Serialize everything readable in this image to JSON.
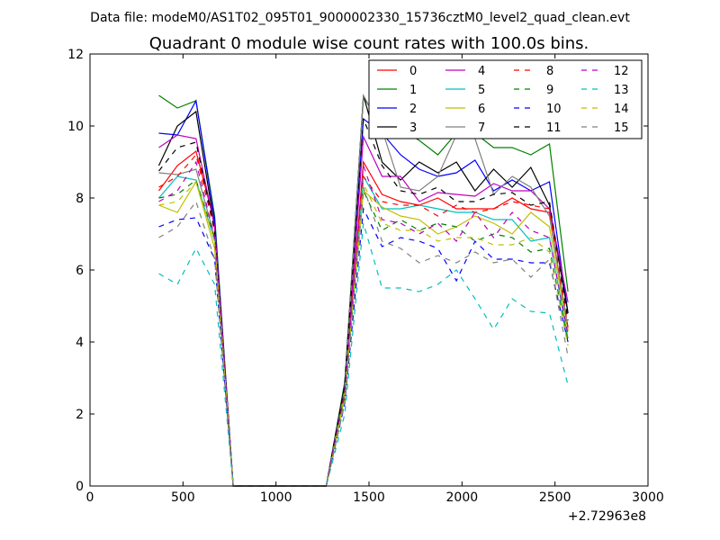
{
  "chart_data": {
    "type": "line",
    "subtitle": "Data file: modeM0/AS1T02_095T01_9000002330_15736cztM0_level2_quad_clean.evt",
    "title": "Quadrant 0 module wise count rates with 100.0s bins.",
    "xlabel": "",
    "ylabel": "",
    "x_offset_label": "+2.72963e8",
    "xlim": [
      0,
      3000
    ],
    "ylim": [
      0,
      12
    ],
    "xticks": [
      0,
      500,
      1000,
      1500,
      2000,
      2500,
      3000
    ],
    "yticks": [
      0,
      2,
      4,
      6,
      8,
      10,
      12
    ],
    "legend_position": "top-right",
    "legend_columns": 4,
    "x": [
      370,
      470,
      570,
      670,
      770,
      870,
      970,
      1070,
      1170,
      1270,
      1370,
      1470,
      1570,
      1670,
      1770,
      1870,
      1970,
      2070,
      2170,
      2270,
      2370,
      2470,
      2570
    ],
    "series": [
      {
        "name": "0",
        "color": "#ff0000",
        "style": "solid",
        "values": [
          8.2,
          8.9,
          9.3,
          7.3,
          0,
          0,
          0,
          0,
          0,
          0,
          2.6,
          9.0,
          8.1,
          7.9,
          7.8,
          8.0,
          7.7,
          7.7,
          7.7,
          8.0,
          7.7,
          7.6,
          4.3
        ]
      },
      {
        "name": "1",
        "color": "#008000",
        "style": "solid",
        "values": [
          10.85,
          10.5,
          10.7,
          7.5,
          0,
          0,
          0,
          0,
          0,
          0,
          2.9,
          10.8,
          10.0,
          9.9,
          9.6,
          9.2,
          9.8,
          9.8,
          9.4,
          9.4,
          9.2,
          9.5,
          5.4
        ]
      },
      {
        "name": "2",
        "color": "#0000ff",
        "style": "solid",
        "values": [
          9.8,
          9.75,
          10.7,
          7.4,
          0,
          0,
          0,
          0,
          0,
          0,
          2.8,
          10.2,
          9.8,
          9.2,
          8.8,
          8.6,
          8.7,
          9.05,
          8.2,
          8.5,
          8.2,
          8.45,
          4.8
        ]
      },
      {
        "name": "3",
        "color": "#000000",
        "style": "solid",
        "values": [
          8.9,
          10.0,
          10.4,
          7.2,
          0,
          0,
          0,
          0,
          0,
          0,
          2.8,
          10.85,
          9.0,
          8.5,
          9.0,
          8.7,
          9.0,
          8.2,
          8.8,
          8.3,
          8.85,
          7.8,
          4.8
        ]
      },
      {
        "name": "4",
        "color": "#bf00bf",
        "style": "solid",
        "values": [
          9.4,
          9.75,
          9.65,
          7.2,
          0,
          0,
          0,
          0,
          0,
          0,
          2.7,
          9.7,
          8.6,
          8.6,
          7.9,
          8.15,
          8.1,
          8.05,
          8.4,
          8.2,
          8.2,
          7.7,
          5.1
        ]
      },
      {
        "name": "5",
        "color": "#00bfbf",
        "style": "solid",
        "values": [
          8.0,
          8.6,
          8.5,
          6.8,
          0,
          0,
          0,
          0,
          0,
          0,
          2.5,
          8.6,
          7.7,
          7.7,
          7.8,
          7.7,
          7.6,
          7.6,
          7.4,
          7.4,
          6.8,
          6.9,
          4.1
        ]
      },
      {
        "name": "6",
        "color": "#bfbf00",
        "style": "solid",
        "values": [
          7.8,
          7.6,
          8.45,
          6.6,
          0,
          0,
          0,
          0,
          0,
          0,
          2.5,
          8.2,
          7.75,
          7.5,
          7.4,
          7.0,
          7.2,
          7.5,
          7.3,
          7.0,
          7.6,
          7.2,
          4.3
        ]
      },
      {
        "name": "7",
        "color": "#808080",
        "style": "solid",
        "values": [
          8.7,
          8.65,
          8.8,
          6.9,
          0,
          0,
          0,
          0,
          0,
          0,
          2.7,
          10.85,
          9.9,
          8.3,
          8.2,
          8.6,
          9.75,
          9.65,
          8.1,
          8.6,
          8.3,
          7.5,
          4.4
        ]
      },
      {
        "name": "8",
        "color": "#ff0000",
        "style": "dashed",
        "values": [
          8.3,
          8.6,
          9.2,
          7.1,
          0,
          0,
          0,
          0,
          0,
          0,
          2.6,
          8.6,
          7.9,
          7.8,
          7.8,
          7.5,
          7.8,
          7.6,
          7.7,
          7.9,
          7.8,
          7.7,
          4.4
        ]
      },
      {
        "name": "9",
        "color": "#008000",
        "style": "dashed",
        "values": [
          8.0,
          8.1,
          8.5,
          6.9,
          0,
          0,
          0,
          0,
          0,
          0,
          2.5,
          8.2,
          7.1,
          7.4,
          7.1,
          7.3,
          7.2,
          6.8,
          7.0,
          6.9,
          6.5,
          6.6,
          4.0
        ]
      },
      {
        "name": "10",
        "color": "#0000ff",
        "style": "dashed",
        "values": [
          7.2,
          7.4,
          7.45,
          6.3,
          0,
          0,
          0,
          0,
          0,
          0,
          2.3,
          7.7,
          6.65,
          6.9,
          6.8,
          6.6,
          5.7,
          6.8,
          6.3,
          6.3,
          6.2,
          6.2,
          4.0
        ]
      },
      {
        "name": "11",
        "color": "#000000",
        "style": "dashed",
        "values": [
          8.75,
          9.4,
          9.55,
          7.1,
          0,
          0,
          0,
          0,
          0,
          0,
          2.8,
          10.2,
          8.9,
          8.2,
          8.1,
          8.3,
          7.9,
          7.9,
          8.1,
          8.15,
          7.8,
          7.9,
          4.6
        ]
      },
      {
        "name": "12",
        "color": "#bf00bf",
        "style": "dashed",
        "values": [
          7.9,
          8.2,
          9.0,
          6.9,
          0,
          0,
          0,
          0,
          0,
          0,
          2.6,
          8.9,
          7.4,
          7.3,
          7.0,
          7.3,
          6.8,
          7.6,
          6.9,
          7.6,
          7.1,
          6.9,
          4.2
        ]
      },
      {
        "name": "13",
        "color": "#00bfbf",
        "style": "dashed",
        "values": [
          5.9,
          5.6,
          6.6,
          5.6,
          0,
          0,
          0,
          0,
          0,
          0,
          2.0,
          7.3,
          5.5,
          5.5,
          5.4,
          5.6,
          6.0,
          5.2,
          4.35,
          5.2,
          4.85,
          4.8,
          2.8
        ]
      },
      {
        "name": "14",
        "color": "#bfbf00",
        "style": "dashed",
        "values": [
          7.8,
          7.9,
          8.45,
          6.8,
          0,
          0,
          0,
          0,
          0,
          0,
          2.4,
          8.4,
          7.3,
          7.1,
          7.1,
          6.8,
          6.9,
          6.9,
          6.7,
          6.7,
          6.9,
          6.5,
          3.9
        ]
      },
      {
        "name": "15",
        "color": "#808080",
        "style": "dashed",
        "values": [
          6.9,
          7.2,
          7.9,
          6.3,
          0,
          0,
          0,
          0,
          0,
          0,
          2.3,
          8.3,
          6.8,
          6.6,
          6.2,
          6.4,
          6.2,
          6.5,
          6.2,
          6.3,
          5.8,
          6.3,
          3.6
        ]
      }
    ]
  }
}
